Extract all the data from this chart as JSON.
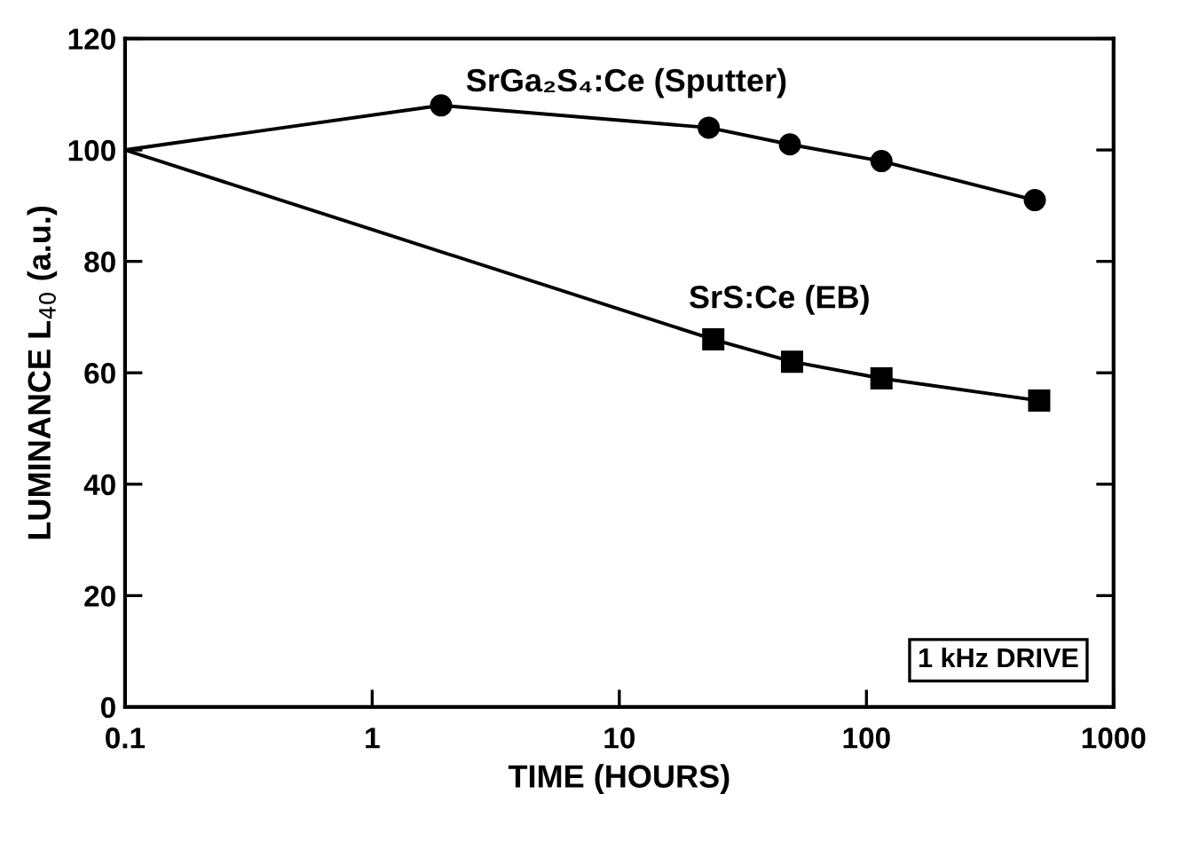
{
  "chart_data": {
    "type": "line",
    "log": "x",
    "xlabel": "TIME (HOURS)",
    "ylabel": "LUMINANCE L$_{40}$ (a.u.)",
    "xlim": [
      0.1,
      1000
    ],
    "xticks": [
      0.1,
      1,
      10,
      100,
      1000
    ],
    "ylim": [
      0,
      120
    ],
    "yticks": [
      0,
      20,
      40,
      60,
      80,
      100,
      120
    ],
    "grid": false,
    "legend": false,
    "series": [
      {
        "name": "SrGa₂S₄:Ce (Sputter)",
        "color": "#000000",
        "marker": "circle",
        "x": [
          1.9,
          23,
          49,
          115,
          480
        ],
        "values": [
          108,
          104,
          101,
          98,
          91
        ]
      },
      {
        "name": "SrS:Ce (EB)",
        "color": "#000000",
        "marker": "square",
        "x": [
          24,
          50,
          115,
          500
        ],
        "values": [
          66,
          62,
          59,
          55
        ]
      },
      {
        "color": "#000000",
        "marker": "none",
        "x": [
          0.1,
          1.9
        ],
        "values": [
          100,
          108
        ]
      },
      {
        "color": "#000000",
        "marker": "none",
        "x": [
          0.1,
          24
        ],
        "values": [
          100,
          66
        ]
      }
    ],
    "annotations": [
      "1 kHz DRIVE"
    ]
  }
}
